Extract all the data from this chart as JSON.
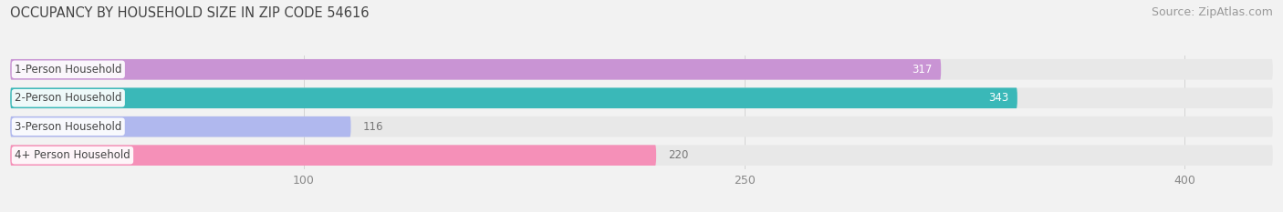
{
  "title": "OCCUPANCY BY HOUSEHOLD SIZE IN ZIP CODE 54616",
  "source": "Source: ZipAtlas.com",
  "categories": [
    "1-Person Household",
    "2-Person Household",
    "3-Person Household",
    "4+ Person Household"
  ],
  "values": [
    317,
    343,
    116,
    220
  ],
  "bar_colors": [
    "#c994d4",
    "#3ab8b8",
    "#b0b8ee",
    "#f590b8"
  ],
  "label_colors": [
    "white",
    "white",
    "#888888",
    "#888888"
  ],
  "value_inside": [
    true,
    true,
    false,
    false
  ],
  "xlim": [
    0,
    430
  ],
  "xticks": [
    100,
    250,
    400
  ],
  "figsize": [
    14.06,
    2.33
  ],
  "dpi": 100,
  "bg_color": "#f2f2f2",
  "bar_bg_color": "#e8e8e8",
  "bar_row_bg": "#ebebeb",
  "title_fontsize": 10.5,
  "source_fontsize": 9,
  "label_fontsize": 8.5,
  "value_fontsize": 8.5,
  "tick_fontsize": 9
}
